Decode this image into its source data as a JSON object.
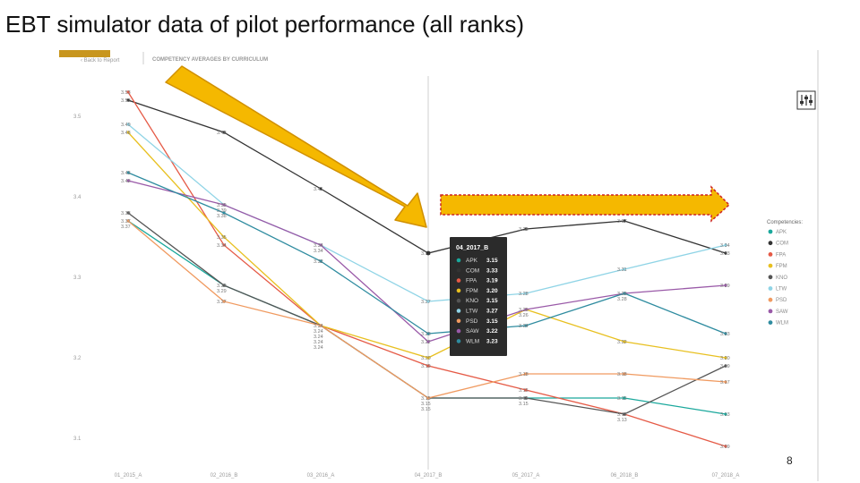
{
  "slide": {
    "title": "EBT simulator data of pilot performance (all ranks)",
    "page_number": "8"
  },
  "report_header": {
    "back_label": "Back to Report",
    "panel_title": "COMPETENCY AVERAGES BY CURRICULUM"
  },
  "colors": {
    "accent": "#c8961e",
    "arrow_fill": "#f5b800",
    "arrow_border": "#cc2222"
  },
  "chart_data": {
    "type": "line",
    "title": "COMPETENCY AVERAGES BY CURRICULUM",
    "categories": [
      "01_2015_A",
      "02_2016_B",
      "03_2016_A",
      "04_2017_B",
      "05_2017_A",
      "06_2018_B",
      "07_2018_A"
    ],
    "ylim": [
      3.05,
      3.55
    ],
    "yticks": [
      "3.1",
      "3.2",
      "3.3",
      "3.4",
      "3.5"
    ],
    "grid": false,
    "legend": {
      "title": "Competencies:",
      "position": "right"
    },
    "series": [
      {
        "name": "APK",
        "color": "#1aa89c",
        "values": [
          3.37,
          3.29,
          3.24,
          3.15,
          3.15,
          3.15,
          3.13
        ]
      },
      {
        "name": "COM",
        "color": "#333333",
        "values": [
          3.52,
          3.48,
          3.41,
          3.33,
          3.36,
          3.37,
          3.33
        ]
      },
      {
        "name": "FPA",
        "color": "#e55a46",
        "values": [
          3.53,
          3.34,
          3.24,
          3.19,
          3.16,
          3.13,
          3.09
        ]
      },
      {
        "name": "FPM",
        "color": "#e8c020",
        "values": [
          3.48,
          3.35,
          3.24,
          3.2,
          3.26,
          3.22,
          3.2
        ]
      },
      {
        "name": "KNO",
        "color": "#555555",
        "values": [
          3.38,
          3.29,
          3.24,
          3.15,
          3.15,
          3.13,
          3.19
        ]
      },
      {
        "name": "LTW",
        "color": "#8fd4e6",
        "values": [
          3.49,
          3.39,
          3.34,
          3.27,
          3.28,
          3.31,
          3.34
        ]
      },
      {
        "name": "PSD",
        "color": "#f09a60",
        "values": [
          3.37,
          3.27,
          3.24,
          3.15,
          3.18,
          3.18,
          3.17
        ]
      },
      {
        "name": "SAW",
        "color": "#9a5aa8",
        "values": [
          3.42,
          3.39,
          3.34,
          3.22,
          3.26,
          3.28,
          3.29
        ]
      },
      {
        "name": "WLM",
        "color": "#2f8ca0",
        "values": [
          3.43,
          3.38,
          3.32,
          3.23,
          3.24,
          3.28,
          3.23
        ]
      }
    ],
    "tooltip": {
      "category": "04_2017_B",
      "rows": [
        {
          "name": "APK",
          "value": "3.15"
        },
        {
          "name": "COM",
          "value": "3.33"
        },
        {
          "name": "FPA",
          "value": "3.19"
        },
        {
          "name": "FPM",
          "value": "3.20"
        },
        {
          "name": "KNO",
          "value": "3.15"
        },
        {
          "name": "LTW",
          "value": "3.27"
        },
        {
          "name": "PSD",
          "value": "3.15"
        },
        {
          "name": "SAW",
          "value": "3.22"
        },
        {
          "name": "WLM",
          "value": "3.23"
        }
      ]
    }
  }
}
